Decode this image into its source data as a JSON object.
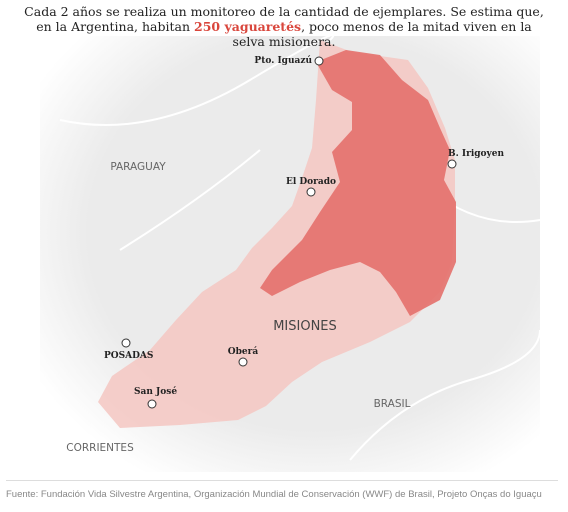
{
  "intro": {
    "before": "Cada 2 años se realiza un monitoreo de la cantidad de ejemplares. Se estima que, en la Argentina, habitan ",
    "highlight": "250 yaguaretés",
    "after": ", poco menos de la mitad viven en la selva misionera."
  },
  "map": {
    "countries": [
      "PARAGUAY",
      "BRASIL",
      "CORRIENTES"
    ],
    "province": "MISIONES",
    "cities": [
      "Pto. Iguazú",
      "B. Irigoyen",
      "El Dorado",
      "Oberá",
      "POSADAS",
      "San José"
    ]
  },
  "source": "Fuente: Fundación Vida Silvestre Argentina, Organización Mundial de Conservación (WWF) de Brasil, Projeto Onças do Iguaçu"
}
